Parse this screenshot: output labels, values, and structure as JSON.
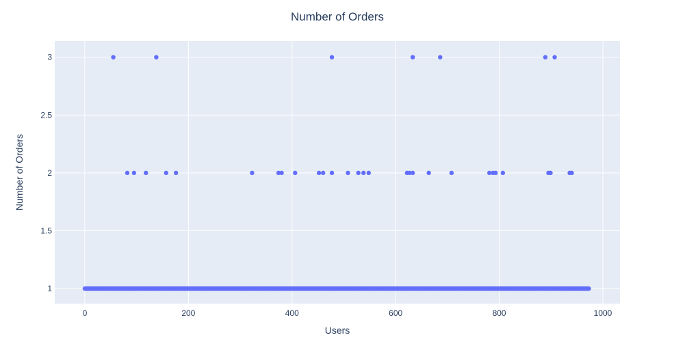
{
  "chart_data": {
    "type": "scatter",
    "title": "Number of Orders",
    "xlabel": "Users",
    "ylabel": "Number of Orders",
    "xlim": [
      -58,
      1033
    ],
    "ylim": [
      0.87,
      3.14
    ],
    "x_ticks": [
      0,
      200,
      400,
      600,
      800,
      1000
    ],
    "y_ticks": [
      1,
      1.5,
      2,
      2.5,
      3
    ],
    "x_tick_labels": [
      "0",
      "200",
      "400",
      "600",
      "800",
      "1000"
    ],
    "y_tick_labels": [
      "1",
      "1.5",
      "2",
      "2.5",
      "3"
    ],
    "grid": true,
    "legend": false,
    "colors": {
      "plot_background": "#e5ecf6",
      "grid": "#ffffff",
      "marker": "#636efa",
      "text": "#2a3f5f"
    },
    "series": [
      {
        "baseline": {
          "y": 1,
          "x_range": [
            0,
            973
          ],
          "note_count": 974
        },
        "x": [
          55,
          82,
          95,
          118,
          138,
          157,
          176,
          323,
          374,
          380,
          406,
          452,
          460,
          477,
          477,
          508,
          528,
          538,
          548,
          622,
          627,
          633,
          633,
          664,
          686,
          708,
          781,
          788,
          793,
          807,
          889,
          895,
          899,
          907,
          936,
          940
        ],
        "y": [
          3,
          2,
          2,
          2,
          3,
          2,
          2,
          2,
          2,
          2,
          2,
          2,
          2,
          2,
          3,
          2,
          2,
          2,
          2,
          2,
          2,
          2,
          3,
          2,
          3,
          2,
          2,
          2,
          2,
          2,
          3,
          2,
          2,
          3,
          2,
          2
        ]
      }
    ]
  }
}
